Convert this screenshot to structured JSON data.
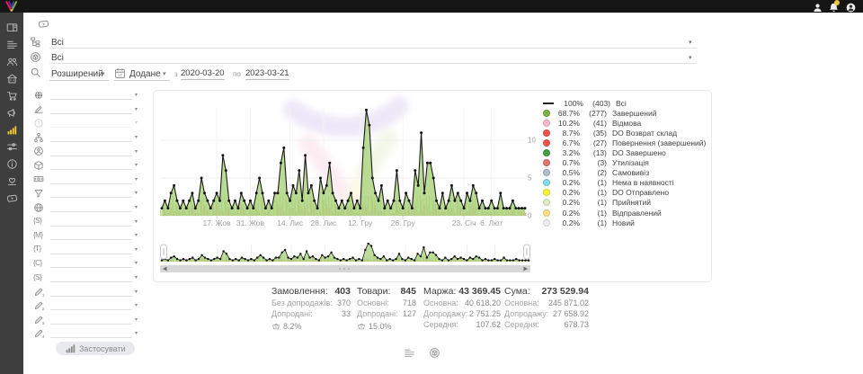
{
  "topbar": {
    "notification_badge": ""
  },
  "app_sidebar": {
    "items": [
      {
        "name": "dashboard",
        "icon": "panel",
        "active": false
      },
      {
        "name": "orders",
        "icon": "list",
        "active": false
      },
      {
        "name": "customers",
        "icon": "users",
        "active": false
      },
      {
        "name": "warehouse",
        "icon": "building",
        "active": false
      },
      {
        "name": "purchases",
        "icon": "cart",
        "active": false
      },
      {
        "name": "campaigns",
        "icon": "megaphone",
        "active": false
      },
      {
        "name": "analytics",
        "icon": "chart-bars",
        "active": true
      },
      {
        "name": "integrations",
        "icon": "sliders",
        "active": false
      },
      {
        "name": "info",
        "icon": "info",
        "active": false
      },
      {
        "name": "loyalty",
        "icon": "loyalty",
        "active": false
      },
      {
        "name": "video-lessons",
        "icon": "video",
        "active": false
      }
    ]
  },
  "header": {
    "filters": [
      {
        "name": "statuses",
        "icon": "category-tree",
        "value": "Всі"
      },
      {
        "name": "products",
        "icon": "package",
        "value": "Всі"
      }
    ],
    "search_mode": "Розширений",
    "date": {
      "field": "Додане",
      "from_label": "з",
      "from": "2020-03-20",
      "to_label": "по",
      "to": "2023-03-21"
    }
  },
  "filter_panel": {
    "apply_label": "Застосувати",
    "rows": [
      {
        "name": "filter-source",
        "icon": "globe-dark",
        "value": "",
        "disabled": false
      },
      {
        "name": "filter-signature",
        "icon": "pen-line",
        "value": "",
        "disabled": false
      },
      {
        "name": "filter-help",
        "icon": "help-circle",
        "value": "",
        "disabled": true
      },
      {
        "name": "filter-structure",
        "icon": "hierarchy",
        "value": "",
        "disabled": false
      },
      {
        "name": "filter-manager",
        "icon": "id-badge",
        "value": "",
        "disabled": false
      },
      {
        "name": "filter-product",
        "icon": "cube",
        "value": "",
        "disabled": false
      },
      {
        "name": "filter-payment",
        "icon": "banknote",
        "value": "",
        "disabled": false
      },
      {
        "name": "filter-funnel",
        "icon": "funnel",
        "value": "",
        "disabled": false
      },
      {
        "name": "filter-site",
        "icon": "globe-grid",
        "value": "",
        "disabled": false
      },
      {
        "name": "filter-var-s",
        "icon": "brace",
        "glyph": "S",
        "value": "",
        "disabled": false
      },
      {
        "name": "filter-var-m",
        "icon": "brace",
        "glyph": "M",
        "value": "",
        "disabled": false
      },
      {
        "name": "filter-var-t",
        "icon": "brace",
        "glyph": "T",
        "value": "",
        "disabled": false
      },
      {
        "name": "filter-var-c",
        "icon": "brace",
        "glyph": "C",
        "value": "",
        "disabled": false
      },
      {
        "name": "filter-var-s2",
        "icon": "brace",
        "glyph": "S",
        "value": "",
        "disabled": false
      },
      {
        "name": "filter-custom-1",
        "icon": "pen-num",
        "glyph": "1",
        "value": "",
        "disabled": false
      },
      {
        "name": "filter-custom-2",
        "icon": "pen-num",
        "glyph": "2",
        "value": "",
        "disabled": false
      },
      {
        "name": "filter-custom-3",
        "icon": "pen-num",
        "glyph": "3",
        "value": "",
        "disabled": false
      },
      {
        "name": "filter-custom-4",
        "icon": "pen-num",
        "glyph": "4",
        "value": "",
        "disabled": false
      }
    ]
  },
  "chart_data": {
    "type": "line",
    "title": "",
    "y_ticks": [
      0,
      5,
      10
    ],
    "ylim": [
      0,
      15
    ],
    "grid": true,
    "legend_position": "right",
    "series": [
      1,
      2,
      1,
      3,
      4,
      2,
      1,
      2,
      1,
      2,
      3,
      1,
      2,
      5,
      3,
      2,
      1,
      2,
      3,
      2,
      8,
      6,
      2,
      1,
      2,
      1,
      3,
      2,
      1,
      2,
      1,
      3,
      5,
      3,
      1,
      2,
      1,
      3,
      3,
      7,
      9,
      3,
      2,
      4,
      3,
      6,
      2,
      8,
      3,
      4,
      2,
      1,
      5,
      3,
      4,
      7,
      3,
      2,
      1,
      2,
      1,
      2,
      3,
      1,
      2,
      1,
      9,
      14,
      12,
      5,
      3,
      2,
      4,
      1,
      2,
      1,
      2,
      6,
      2,
      1,
      3,
      2,
      1,
      6,
      4,
      11,
      3,
      7,
      7,
      5,
      2,
      1,
      3,
      1,
      2,
      4,
      2,
      3,
      2,
      1,
      3,
      2,
      4,
      3,
      1,
      2,
      1,
      1,
      2,
      1,
      1,
      3,
      1,
      1,
      1,
      2,
      1,
      1,
      1,
      1
    ],
    "x_ticks": [
      {
        "i": 18,
        "label": "17. Жов"
      },
      {
        "i": 29,
        "label": "31. Жов"
      },
      {
        "i": 42,
        "label": "14. Лис"
      },
      {
        "i": 53,
        "label": "28. Лис"
      },
      {
        "i": 65,
        "label": "12. Гру"
      },
      {
        "i": 79,
        "label": "26. Гру"
      },
      {
        "i": 99,
        "label": "23. Січ"
      },
      {
        "i": 108,
        "label": "6. Лют"
      }
    ],
    "colors": {
      "area": "#aed581",
      "line": "#1a1a1a",
      "dot": "#141414",
      "bar_green": "#9ccc65",
      "bar_red": "#e57373",
      "bar_pink": "#f3bac6",
      "bar_yellow": "#f4f436",
      "bar_cyan": "#80deea"
    },
    "legend": [
      {
        "pct": "100%",
        "count": "(403)",
        "label": "Всі",
        "color": "#212121",
        "type": "line"
      },
      {
        "pct": "68.7%",
        "count": "(277)",
        "label": "Завершений",
        "color": "#7cb342",
        "type": "dot"
      },
      {
        "pct": "10.2%",
        "count": "(41)",
        "label": "Відмова",
        "color": "#f8bbd0",
        "type": "dot"
      },
      {
        "pct": "8.7%",
        "count": "(35)",
        "label": "DO Возврат склад",
        "color": "#ef5350",
        "type": "dot"
      },
      {
        "pct": "6.7%",
        "count": "(27)",
        "label": "Повернення (завершений)",
        "color": "#ef5350",
        "type": "dot"
      },
      {
        "pct": "3.2%",
        "count": "(13)",
        "label": "DO Завершено",
        "color": "#43a047",
        "type": "dot"
      },
      {
        "pct": "0.7%",
        "count": "(3)",
        "label": "Утилізація",
        "color": "#e57373",
        "type": "dot"
      },
      {
        "pct": "0.5%",
        "count": "(2)",
        "label": "Самовивіз",
        "color": "#b0bec5",
        "type": "dot"
      },
      {
        "pct": "0.2%",
        "count": "(1)",
        "label": "Нема в наявності",
        "color": "#80deea",
        "type": "dot"
      },
      {
        "pct": "0.2%",
        "count": "(1)",
        "label": "DO Отправлено",
        "color": "#f4f436",
        "type": "dot"
      },
      {
        "pct": "0.2%",
        "count": "(1)",
        "label": "Прийнятий",
        "color": "#dcedc8",
        "type": "dot"
      },
      {
        "pct": "0.2%",
        "count": "(1)",
        "label": "Відправлений",
        "color": "#ffe082",
        "type": "dot"
      },
      {
        "pct": "0.2%",
        "count": "(1)",
        "label": "Новий",
        "color": "#eeeeee",
        "type": "dot"
      }
    ]
  },
  "stats": {
    "columns": [
      {
        "title": "Замовлення:",
        "value": "403",
        "x": 302,
        "w": 88,
        "rows": [
          {
            "label": "Без допродажів:",
            "value": "370"
          },
          {
            "label": "Допродані:",
            "value": "33"
          }
        ],
        "badge": "8.2%"
      },
      {
        "title": "Товари:",
        "value": "845",
        "x": 397,
        "w": 66,
        "rows": [
          {
            "label": "Основні:",
            "value": "718"
          },
          {
            "label": "Допродані:",
            "value": "127"
          }
        ],
        "badge": "15.0%"
      },
      {
        "title": "Маржа:",
        "value": "43 369.45",
        "x": 471,
        "w": 86,
        "rows": [
          {
            "label": "Основна:",
            "value": "40 618.20"
          },
          {
            "label": "Допродажу:",
            "value": "2 751.25"
          },
          {
            "label": "Середня:",
            "value": "107.62"
          }
        ],
        "badge": ""
      },
      {
        "title": "Сума:",
        "value": "273 529.94",
        "x": 561,
        "w": 94,
        "rows": [
          {
            "label": "Основна:",
            "value": "245 871.02"
          },
          {
            "label": "Допродажу:",
            "value": "27 658.92"
          },
          {
            "label": "Середня:",
            "value": "678.73"
          }
        ],
        "badge": ""
      }
    ]
  },
  "footer_icons": [
    {
      "name": "list-view",
      "icon": "list"
    },
    {
      "name": "products-view",
      "icon": "package"
    }
  ]
}
